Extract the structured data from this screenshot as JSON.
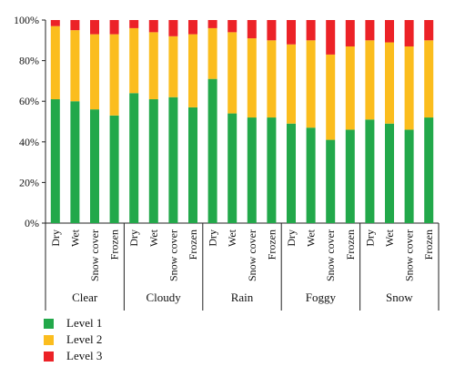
{
  "chart_data": {
    "type": "bar",
    "stacked": true,
    "title": "",
    "xlabel": "",
    "ylabel": "",
    "ylim": [
      0,
      100
    ],
    "yticks": [
      "0%",
      "20%",
      "40%",
      "60%",
      "80%",
      "100%"
    ],
    "groups": [
      {
        "name": "Clear",
        "conditions": [
          "Dry",
          "Wet",
          "Snow cover",
          "Frozen"
        ]
      },
      {
        "name": "Cloudy",
        "conditions": [
          "Dry",
          "Wet",
          "Snow cover",
          "Frozen"
        ]
      },
      {
        "name": "Rain",
        "conditions": [
          "Dry",
          "Wet",
          "Snow cover",
          "Frozen"
        ]
      },
      {
        "name": "Foggy",
        "conditions": [
          "Dry",
          "Wet",
          "Snow cover",
          "Frozen"
        ]
      },
      {
        "name": "Snow",
        "conditions": [
          "Dry",
          "Wet",
          "Snow cover",
          "Frozen"
        ]
      }
    ],
    "series": [
      {
        "name": "Level 1",
        "color": "#22a84a",
        "values": [
          61,
          60,
          56,
          53,
          64,
          61,
          62,
          57,
          71,
          54,
          52,
          52,
          49,
          47,
          41,
          46,
          51,
          49,
          46,
          52
        ]
      },
      {
        "name": "Level 2",
        "color": "#fbbd1e",
        "values": [
          36,
          35,
          37,
          40,
          32,
          33,
          30,
          36,
          25,
          40,
          39,
          38,
          39,
          43,
          42,
          41,
          39,
          40,
          41,
          38
        ]
      },
      {
        "name": "Level 3",
        "color": "#ec2227",
        "values": [
          3,
          5,
          7,
          7,
          4,
          6,
          8,
          7,
          4,
          6,
          9,
          10,
          12,
          10,
          17,
          13,
          10,
          11,
          13,
          10
        ]
      }
    ],
    "grid": false,
    "legend_position": "bottom-left"
  }
}
